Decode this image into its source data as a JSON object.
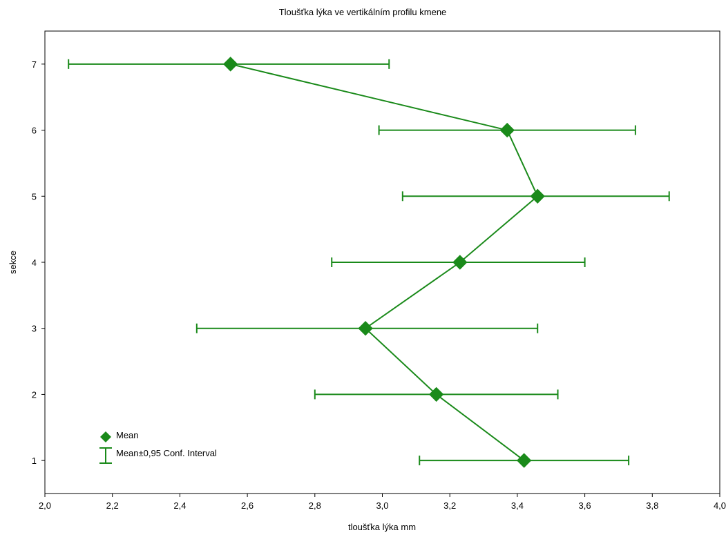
{
  "chart_data": {
    "type": "scatter",
    "title": "Tloušťka lýka ve vertikálním profilu kmene",
    "xlabel": "tloušťka lýka mm",
    "ylabel": "sekce",
    "xlim": [
      2.0,
      4.0
    ],
    "ylim": [
      0.5,
      7.5
    ],
    "x_ticks": [
      "2,0",
      "2,2",
      "2,4",
      "2,6",
      "2,8",
      "3,0",
      "3,2",
      "3,4",
      "3,6",
      "3,8",
      "4,0"
    ],
    "y_ticks": [
      "1",
      "2",
      "3",
      "4",
      "5",
      "6",
      "7"
    ],
    "grid": false,
    "legend_position": "bottom-left",
    "color": "#1a8a1a",
    "series": [
      {
        "name": "Mean",
        "points": [
          {
            "y": 1,
            "x": 3.42
          },
          {
            "y": 2,
            "x": 3.16
          },
          {
            "y": 3,
            "x": 2.95
          },
          {
            "y": 4,
            "x": 3.23
          },
          {
            "y": 5,
            "x": 3.46
          },
          {
            "y": 6,
            "x": 3.37
          },
          {
            "y": 7,
            "x": 2.55
          }
        ]
      },
      {
        "name": "Mean±0,95 Conf. Interval",
        "intervals": [
          {
            "y": 1,
            "low": 3.11,
            "high": 3.73
          },
          {
            "y": 2,
            "low": 2.8,
            "high": 3.52
          },
          {
            "y": 3,
            "low": 2.45,
            "high": 3.46
          },
          {
            "y": 4,
            "low": 2.85,
            "high": 3.6
          },
          {
            "y": 5,
            "low": 3.06,
            "high": 3.85
          },
          {
            "y": 6,
            "low": 2.99,
            "high": 3.75
          },
          {
            "y": 7,
            "low": 2.07,
            "high": 3.02
          }
        ]
      }
    ]
  }
}
